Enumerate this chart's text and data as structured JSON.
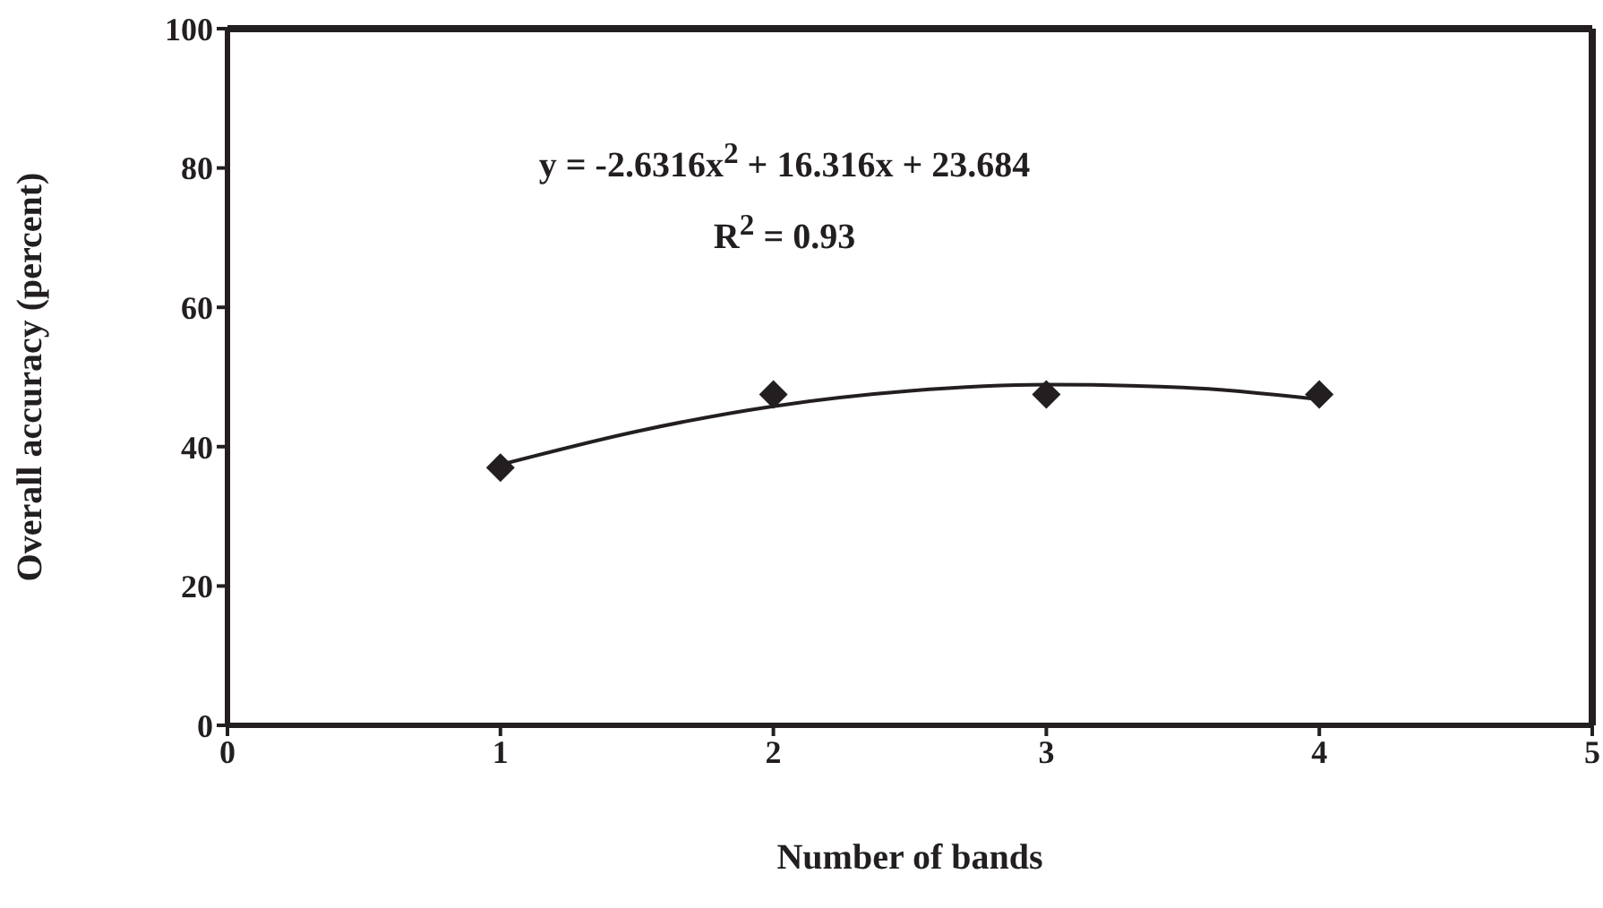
{
  "chart_data": {
    "type": "scatter",
    "xlabel": "Number of bands",
    "ylabel": "Overall accuracy (percent)",
    "annotations": [
      "y = -2.6316x$^{2}$ + 16.316x + 23.684",
      "R$^{2}$ = 0.93"
    ],
    "x": [
      1,
      2,
      3,
      4
    ],
    "series": [
      {
        "color": "#231f20",
        "marker": "diamond",
        "values": [
          37,
          47.5,
          47.5,
          47.5
        ]
      },
      {
        "type": "line",
        "color": "#231f20",
        "marker": "none",
        "line_style": "solid",
        "x": [
          1,
          1.5,
          2,
          2.5,
          3,
          3.5,
          4
        ],
        "values": [
          37.4,
          42.2,
          45.8,
          48,
          48.9,
          48.5,
          46.8
        ]
      }
    ],
    "xlim": [
      0,
      5
    ],
    "xticks": [
      0,
      1,
      2,
      3,
      4,
      5
    ],
    "ylim": [
      0,
      100
    ],
    "yticks": [
      0,
      20,
      40,
      60,
      80,
      100
    ]
  }
}
